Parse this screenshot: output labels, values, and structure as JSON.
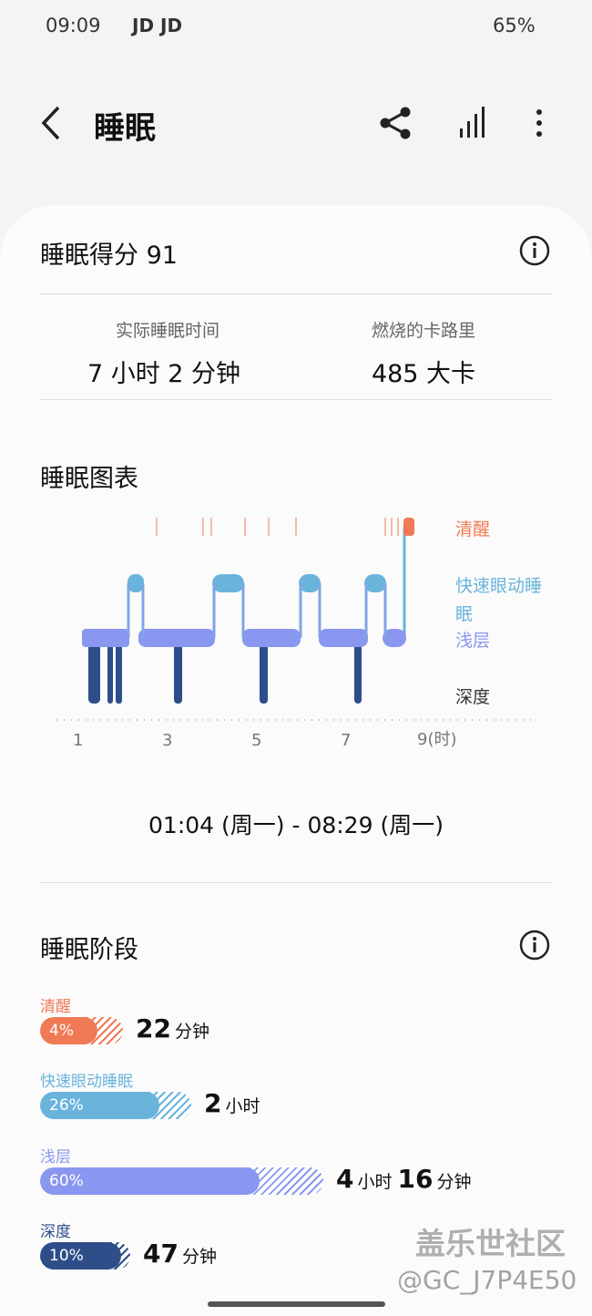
{
  "status_bar": {
    "time": "09:09",
    "notifications": "JD JD",
    "battery": "65%"
  },
  "header": {
    "title": "睡眠"
  },
  "score": {
    "label": "睡眠得分 91"
  },
  "summary": {
    "items": [
      {
        "label": "实际睡眠时间",
        "value": "7 小时 2 分钟"
      },
      {
        "label": "燃烧的卡路里",
        "value": "485 大卡"
      }
    ]
  },
  "chart": {
    "title": "睡眠图表",
    "legend": [
      "清醒",
      "快速眼动睡眠",
      "浅层",
      "深度"
    ],
    "x_ticks": [
      "1",
      "3",
      "5",
      "7",
      "9(时)"
    ],
    "range": "01:04 (周一) - 08:29 (周一)"
  },
  "stages": {
    "title": "睡眠阶段",
    "items": [
      {
        "name": "清醒",
        "percent": "4%",
        "duration": [
          {
            "num": "22",
            "unit": "分钟"
          }
        ]
      },
      {
        "name": "快速眼动睡眠",
        "percent": "26%",
        "duration": [
          {
            "num": "2",
            "unit": "小时"
          }
        ]
      },
      {
        "name": "浅层",
        "percent": "60%",
        "duration": [
          {
            "num": "4",
            "unit": "小时"
          },
          {
            "num": "16",
            "unit": "分钟"
          }
        ]
      },
      {
        "name": "深度",
        "percent": "10%",
        "duration": [
          {
            "num": "47",
            "unit": "分钟"
          }
        ]
      }
    ]
  },
  "watermark": {
    "brand": "盖乐世社区",
    "user": "@GC_J7P4E50"
  }
}
